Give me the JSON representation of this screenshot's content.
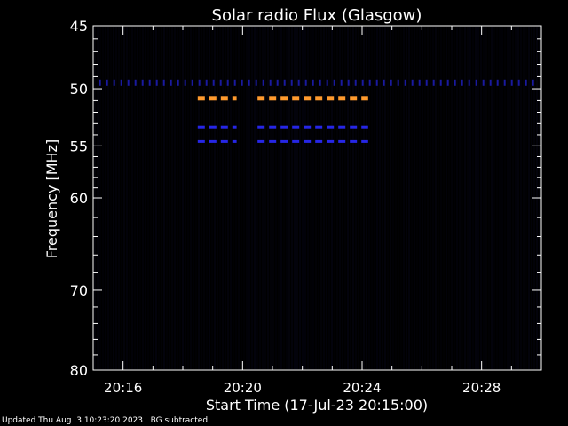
{
  "chart_data": {
    "type": "heatmap",
    "title": "Solar radio Flux (Glasgow)",
    "xlabel": "Start Time (17-Jul-23 20:15:00)",
    "ylabel": "Frequency [MHz]",
    "x_ticks": [
      "20:16",
      "20:20",
      "20:24",
      "20:28"
    ],
    "x_tick_minutes": [
      1,
      5,
      9,
      13
    ],
    "xlim_minutes": [
      0,
      15
    ],
    "y_ticks": [
      45,
      50,
      55,
      60,
      70,
      80
    ],
    "ylim": [
      45,
      80
    ],
    "y_scale": "log",
    "colors": {
      "background": "#000000",
      "noise": "#0a0a28",
      "weak": "#1a1aa0",
      "medium": "#2626e6",
      "strong": "#ff9a2e",
      "axes": "#ffffff"
    },
    "features": [
      {
        "freq_mhz": 49.5,
        "start_min": 0.2,
        "end_min": 14.8,
        "intensity": "weak",
        "dashed": true
      },
      {
        "freq_mhz": 50.8,
        "start_min": 3.5,
        "end_min": 4.8,
        "intensity": "strong",
        "dashed": true
      },
      {
        "freq_mhz": 50.8,
        "start_min": 5.5,
        "end_min": 9.2,
        "intensity": "strong",
        "dashed": true
      },
      {
        "freq_mhz": 53.3,
        "start_min": 3.5,
        "end_min": 4.8,
        "intensity": "medium",
        "dashed": true
      },
      {
        "freq_mhz": 53.3,
        "start_min": 5.5,
        "end_min": 9.2,
        "intensity": "medium",
        "dashed": true
      },
      {
        "freq_mhz": 54.6,
        "start_min": 3.5,
        "end_min": 4.8,
        "intensity": "medium",
        "dashed": true
      },
      {
        "freq_mhz": 54.6,
        "start_min": 5.5,
        "end_min": 9.2,
        "intensity": "medium",
        "dashed": true
      }
    ]
  },
  "footer": {
    "updated": "Updated Thu Aug  3 10:23:20 2023",
    "note": "BG subtracted"
  }
}
